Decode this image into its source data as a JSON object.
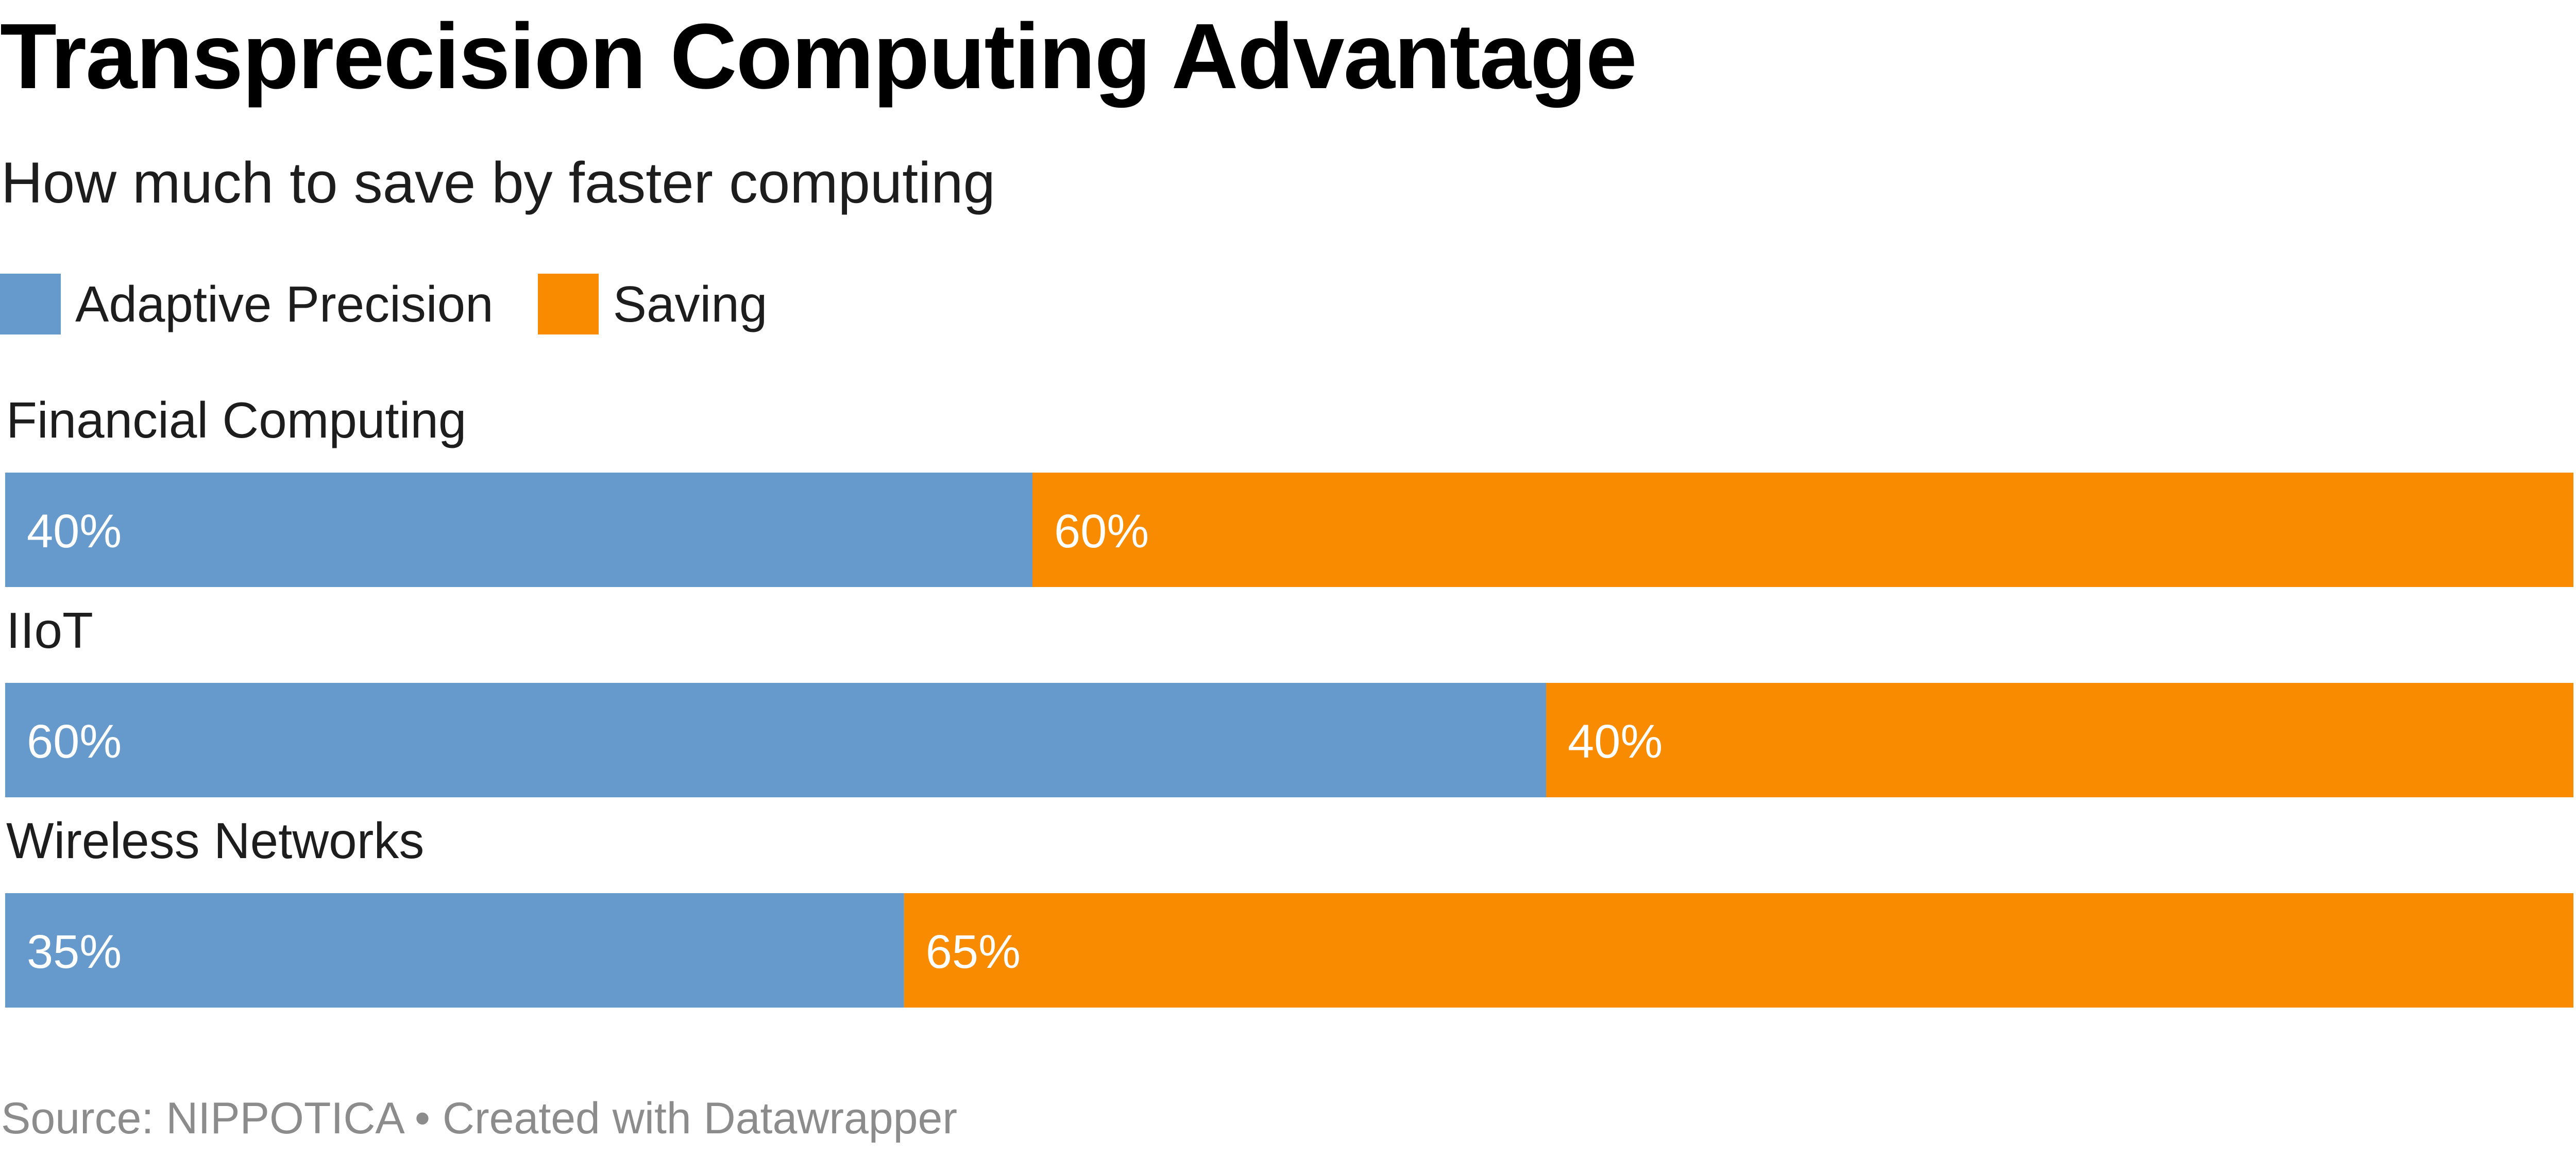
{
  "header": {
    "title": "Transprecision Computing Advantage",
    "subtitle": "How much to save by faster computing"
  },
  "legend": [
    {
      "label": "Adaptive Precision",
      "color": "#6699cc"
    },
    {
      "label": "Saving",
      "color": "#f98b00"
    }
  ],
  "footer": {
    "source": "Source: NIPPOTICA • Created with Datawrapper"
  },
  "chart_data": {
    "type": "bar",
    "orientation": "horizontal",
    "stacked": true,
    "stack_mode": "percent",
    "categories": [
      "Financial Computing",
      "IIoT",
      "Wireless Networks"
    ],
    "series": [
      {
        "name": "Adaptive Precision",
        "values": [
          40,
          60,
          35
        ],
        "labels": [
          "40%",
          "60%",
          "35%"
        ],
        "color": "#6699cc"
      },
      {
        "name": "Saving",
        "values": [
          60,
          40,
          65
        ],
        "labels": [
          "60%",
          "40%",
          "65%"
        ],
        "color": "#f98b00"
      }
    ],
    "title": "Transprecision Computing Advantage",
    "subtitle": "How much to save by faster computing",
    "xlim": [
      0,
      100
    ],
    "grid": false,
    "legend_position": "top-left"
  }
}
